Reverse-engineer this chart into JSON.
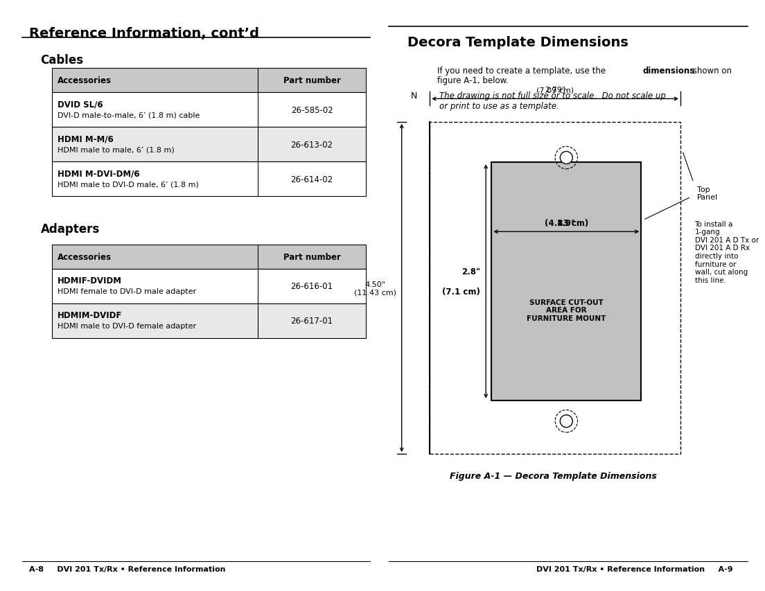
{
  "page_bg": "#ffffff",
  "left_title": "Reference Information, cont’d",
  "cables_section_title": "Cables",
  "cables_header": [
    "Accessories",
    "Part number"
  ],
  "cables_rows": [
    [
      "DVID SL/6",
      "DVI-D male-to-male, 6’ (1.8 m) cable",
      "26-585-02"
    ],
    [
      "HDMI M-M/6",
      "HDMI male to male, 6’ (1.8 m)",
      "26-613-02"
    ],
    [
      "HDMI M-DVI-DM/6",
      "HDMI male to DVI-D male, 6’ (1.8 m)",
      "26-614-02"
    ]
  ],
  "adapters_section_title": "Adapters",
  "adapters_header": [
    "Accessories",
    "Part number"
  ],
  "adapters_rows": [
    [
      "HDMIF-DVIDM",
      "HDMI female to DVI-D male adapter",
      "26-616-01"
    ],
    [
      "HDMIM-DVIDF",
      "HDMI male to DVI-D female adapter",
      "26-617-01"
    ]
  ],
  "footer_left": "A-8     DVI 201 Tx/Rx • Reference Information",
  "footer_right": "DVI 201 Tx/Rx • Reference Information     A-9",
  "right_title": "Decora Template Dimensions",
  "right_intro_normal": "If you need to create a template, use the ",
  "right_intro_bold": "dimensions",
  "right_intro_end": " shown on\nfigure A-1, below.",
  "note_label": "N",
  "note_text": "The drawing is not full size or to scale.  Do not scale up\nor print to use as a template.",
  "dim_width_label1": "2.79\"",
  "dim_width_label2": "(7.09 cm)",
  "dim_height_label1": "4.50\"",
  "dim_height_label2": "(11.43 cm)",
  "dim_inner_width_label1": "1.9\"",
  "dim_inner_width_label2": "(4.83 cm)",
  "dim_inner_height_label1": "2.8\"",
  "dim_inner_height_label2": "(7.1 cm)",
  "surface_cutout_text": "SURFACE CUT-OUT\nAREA FOR\nFURNITURE MOUNT",
  "top_panel_label": "Top\nPanel",
  "install_label": "To install a\n1-gang\nDVI 201 A D Tx or\nDVI 201 A D Rx\ndirectly into\nfurniture or\nwall, cut along\nthis line.",
  "figure_caption": "Figure A-1 — Decora Template Dimensions",
  "table_header_bg": "#c8c8c8",
  "table_row0_bg": "#ffffff",
  "table_row1_bg": "#e8e8e8",
  "cutout_fill": "#c0c0c0",
  "black": "#000000",
  "white": "#ffffff"
}
